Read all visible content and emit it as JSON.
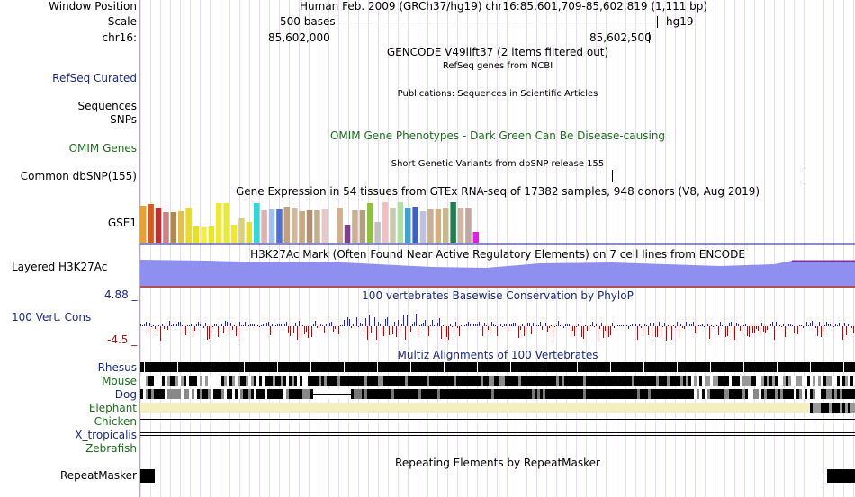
{
  "header": {
    "window_label": "Window Position",
    "window_value": "Human Feb. 2009 (GRCh37/hg19)   chr16:85,601,709-85,602,819 (1,111 bp)",
    "scale_label": "Scale",
    "scale_value": "500 bases",
    "assembly": "hg19",
    "chrom_label": "chr16:",
    "pos1": "85,602,000",
    "pos2": "85,602,500"
  },
  "tracks": {
    "gencode_title": "GENCODE V49lift37 (2 items filtered out)",
    "refseq_label": "RefSeq Curated",
    "refseq_title": "RefSeq genes from NCBI",
    "pubs_title": "Publications: Sequences in Scientific Articles",
    "sequences_label": "Sequences",
    "snps_label": "SNPs",
    "omim_label": "OMIM Genes",
    "omim_title": "OMIM Gene Phenotypes - Dark Green Can Be Disease-causing",
    "dbsnp_title": "Short Genetic Variants from dbSNP release 155",
    "dbsnp_label": "Common dbSNP(155)",
    "gtex_title": "Gene Expression in 54 tissues from GTEx RNA-seq of 17382 samples, 948 donors (V8, Aug 2019)",
    "gtex_label": "GSE1",
    "h3k27_title": "H3K27Ac Mark (Often Found Near Active Regulatory Elements) on 7 cell lines from ENCODE",
    "h3k27_label": "Layered H3K27Ac",
    "phylop_title": "100 vertebrates Basewise Conservation by PhyloP",
    "phylop_label": "100 Vert. Cons",
    "phylop_max": "4.88 _",
    "phylop_min": "-4.5 _",
    "multiz_title": "Multiz Alignments of 100 Vertebrates",
    "species": [
      "Rhesus",
      "Mouse",
      "Dog",
      "Elephant",
      "Chicken",
      "X_tropicalis",
      "Zebrafish"
    ],
    "repeat_title": "Repeating Elements by RepeatMasker",
    "repeat_label": "RepeatMasker"
  },
  "colors": {
    "gtex_bars": [
      "#e8a030",
      "#d65a20",
      "#c03030",
      "#d08080",
      "#b08850",
      "#e0c050",
      "#e8d830",
      "#e8e020",
      "#f0f040",
      "#e8e820",
      "#f0e838",
      "#e8e840",
      "#f0e830",
      "#d8d080",
      "#e8e030",
      "#30d8d8",
      "#e0b0b0",
      "#a0c0f0",
      "#5070d0",
      "#c0a080",
      "#d0b8a0",
      "#c8a880",
      "#b09070",
      "#c0b090",
      "#e8c8c8",
      "#ffffff",
      "#d0b090",
      "#804090",
      "#c8b090",
      "#b0a080",
      "#90c040",
      "#c0c0c0",
      "#f0c0c0",
      "#c8c8b0",
      "#b0e0a0",
      "#40a0d0",
      "#4060c0",
      "#c0c0e0",
      "#c8b090",
      "#d0b080",
      "#c8b890",
      "#208050",
      "#d0b8a0",
      "#c0a8a0",
      "#e020e0"
    ],
    "gtex_values": [
      0.9,
      0.93,
      0.85,
      0.73,
      0.73,
      0.76,
      0.85,
      0.4,
      0.38,
      0.4,
      0.95,
      0.95,
      0.44,
      0.59,
      0.49,
      0.96,
      0.78,
      0.8,
      0.82,
      0.87,
      0.85,
      0.76,
      0.79,
      0.78,
      0.82,
      0.69,
      0.84,
      0.44,
      0.78,
      0.78,
      0.95,
      0.5,
      0.98,
      0.85,
      0.98,
      0.85,
      0.86,
      0.77,
      0.83,
      0.83,
      0.85,
      0.98,
      0.84,
      0.84,
      0.27
    ]
  }
}
